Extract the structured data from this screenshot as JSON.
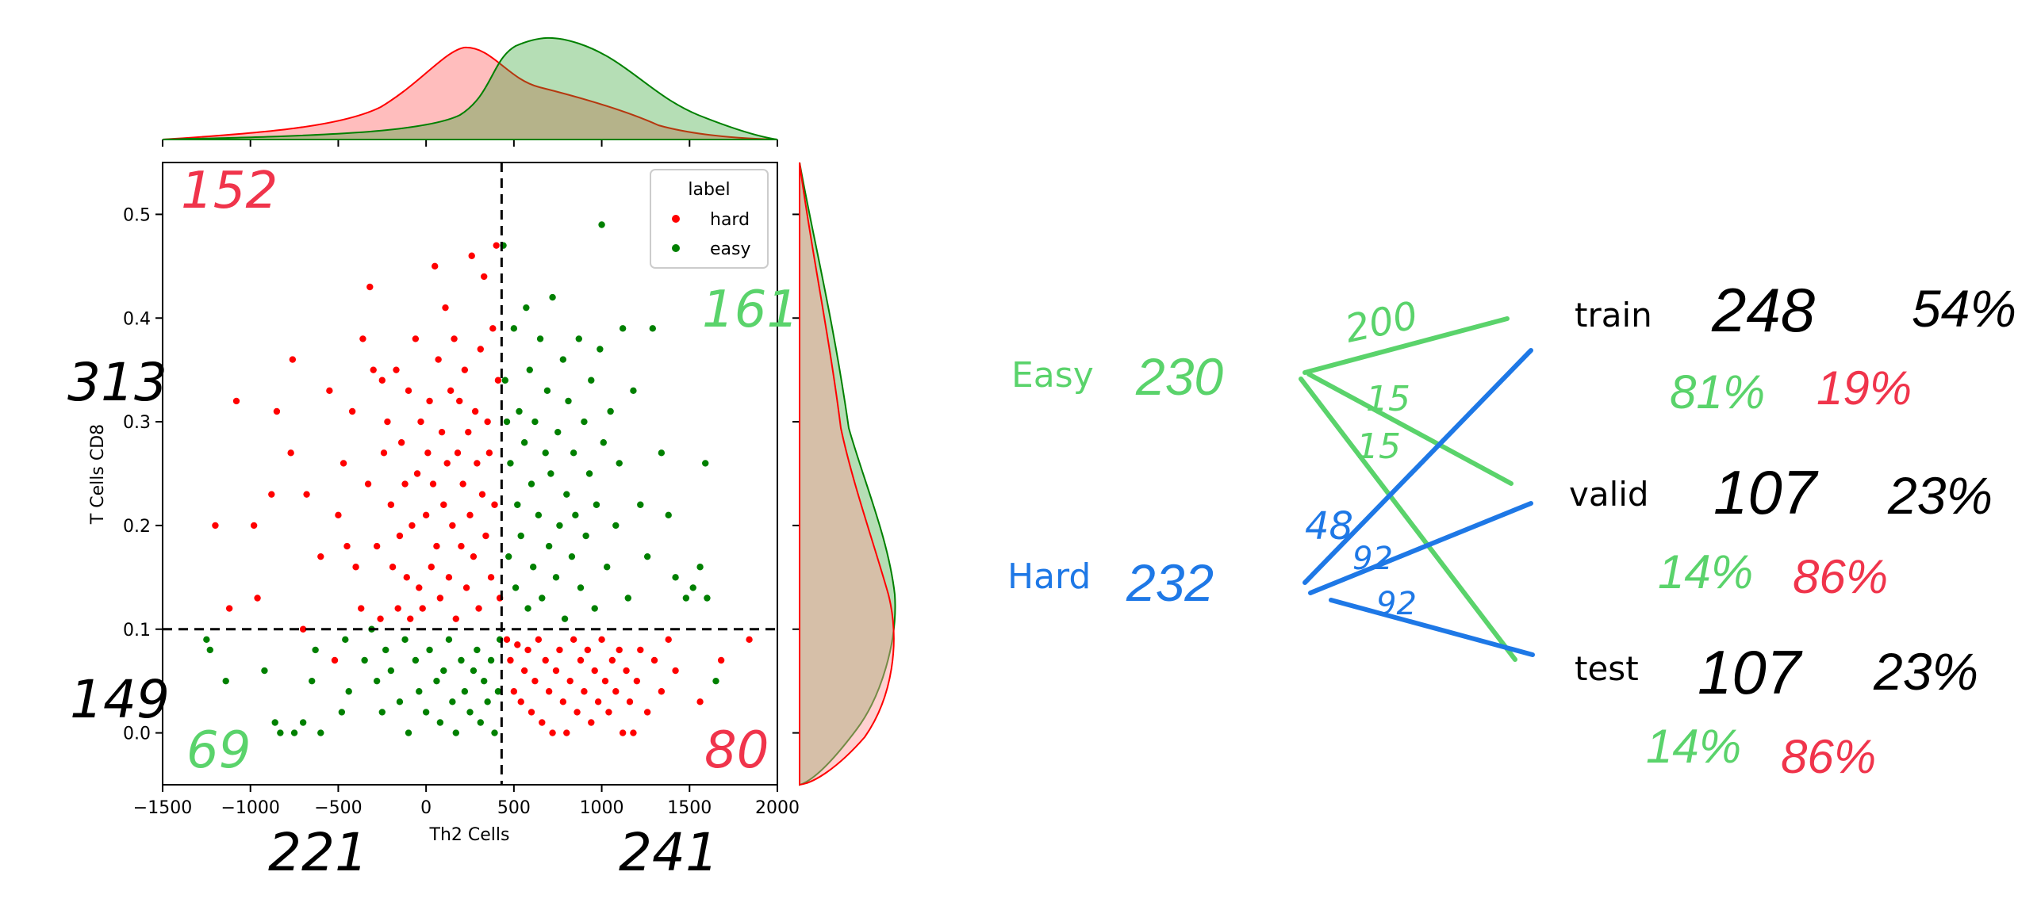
{
  "chart_data": {
    "type": "scatter",
    "xlabel": "Th2 Cells",
    "ylabel": "T Cells CD8",
    "xlim": [
      -1500,
      2000
    ],
    "ylim": [
      -0.05,
      0.55
    ],
    "x_ticks": [
      -1500,
      -1000,
      -500,
      0,
      500,
      1000,
      1500,
      2000
    ],
    "x_tick_labels": [
      "−1500",
      "−1000",
      "−500",
      "0",
      "500",
      "1000",
      "1500",
      "2000"
    ],
    "y_ticks": [
      0.0,
      0.1,
      0.2,
      0.3,
      0.4,
      0.5
    ],
    "y_tick_labels": [
      "0.0",
      "0.1",
      "0.2",
      "0.3",
      "0.4",
      "0.5"
    ],
    "legend": {
      "title": "label",
      "position": "top-right",
      "entries": [
        "hard",
        "easy"
      ]
    },
    "thresholds": {
      "x": 430,
      "y": 0.1
    },
    "series": [
      {
        "name": "hard",
        "color": "#ff0000",
        "points": [
          [
            -1200,
            0.2
          ],
          [
            -1120,
            0.12
          ],
          [
            -1080,
            0.32
          ],
          [
            -980,
            0.2
          ],
          [
            -960,
            0.13
          ],
          [
            -880,
            0.23
          ],
          [
            -850,
            0.31
          ],
          [
            -770,
            0.27
          ],
          [
            -760,
            0.36
          ],
          [
            -700,
            0.1
          ],
          [
            -680,
            0.23
          ],
          [
            -600,
            0.17
          ],
          [
            -550,
            0.33
          ],
          [
            -520,
            0.07
          ],
          [
            -500,
            0.21
          ],
          [
            -470,
            0.26
          ],
          [
            -450,
            0.18
          ],
          [
            -420,
            0.31
          ],
          [
            -400,
            0.16
          ],
          [
            -370,
            0.12
          ],
          [
            -360,
            0.38
          ],
          [
            -330,
            0.24
          ],
          [
            -320,
            0.43
          ],
          [
            -300,
            0.35
          ],
          [
            -280,
            0.18
          ],
          [
            -260,
            0.11
          ],
          [
            -250,
            0.34
          ],
          [
            -240,
            0.27
          ],
          [
            -220,
            0.3
          ],
          [
            -200,
            0.22
          ],
          [
            -190,
            0.16
          ],
          [
            -170,
            0.35
          ],
          [
            -160,
            0.12
          ],
          [
            -150,
            0.19
          ],
          [
            -140,
            0.28
          ],
          [
            -120,
            0.24
          ],
          [
            -110,
            0.15
          ],
          [
            -100,
            0.33
          ],
          [
            -90,
            0.11
          ],
          [
            -80,
            0.2
          ],
          [
            -60,
            0.38
          ],
          [
            -50,
            0.25
          ],
          [
            -40,
            0.14
          ],
          [
            -30,
            0.3
          ],
          [
            -20,
            0.12
          ],
          [
            0,
            0.21
          ],
          [
            10,
            0.27
          ],
          [
            20,
            0.32
          ],
          [
            30,
            0.16
          ],
          [
            40,
            0.24
          ],
          [
            50,
            0.45
          ],
          [
            60,
            0.18
          ],
          [
            70,
            0.36
          ],
          [
            80,
            0.13
          ],
          [
            90,
            0.29
          ],
          [
            100,
            0.22
          ],
          [
            110,
            0.41
          ],
          [
            120,
            0.26
          ],
          [
            130,
            0.15
          ],
          [
            140,
            0.33
          ],
          [
            150,
            0.2
          ],
          [
            160,
            0.38
          ],
          [
            170,
            0.11
          ],
          [
            180,
            0.27
          ],
          [
            190,
            0.32
          ],
          [
            200,
            0.18
          ],
          [
            210,
            0.24
          ],
          [
            220,
            0.35
          ],
          [
            230,
            0.14
          ],
          [
            240,
            0.29
          ],
          [
            250,
            0.21
          ],
          [
            260,
            0.46
          ],
          [
            270,
            0.17
          ],
          [
            280,
            0.31
          ],
          [
            290,
            0.26
          ],
          [
            300,
            0.12
          ],
          [
            310,
            0.37
          ],
          [
            320,
            0.23
          ],
          [
            330,
            0.44
          ],
          [
            340,
            0.19
          ],
          [
            350,
            0.3
          ],
          [
            360,
            0.27
          ],
          [
            370,
            0.15
          ],
          [
            380,
            0.39
          ],
          [
            390,
            0.22
          ],
          [
            400,
            0.47
          ],
          [
            410,
            0.34
          ],
          [
            420,
            0.13
          ],
          [
            460,
            0.09
          ],
          [
            480,
            0.07
          ],
          [
            500,
            0.04
          ],
          [
            520,
            0.085
          ],
          [
            540,
            0.03
          ],
          [
            560,
            0.06
          ],
          [
            580,
            0.08
          ],
          [
            600,
            0.02
          ],
          [
            620,
            0.05
          ],
          [
            640,
            0.09
          ],
          [
            660,
            0.01
          ],
          [
            680,
            0.07
          ],
          [
            700,
            0.04
          ],
          [
            720,
            0.0
          ],
          [
            740,
            0.06
          ],
          [
            760,
            0.08
          ],
          [
            780,
            0.03
          ],
          [
            800,
            0.0
          ],
          [
            820,
            0.05
          ],
          [
            840,
            0.09
          ],
          [
            860,
            0.02
          ],
          [
            880,
            0.07
          ],
          [
            900,
            0.04
          ],
          [
            920,
            0.08
          ],
          [
            940,
            0.01
          ],
          [
            960,
            0.06
          ],
          [
            980,
            0.03
          ],
          [
            1000,
            0.09
          ],
          [
            1020,
            0.05
          ],
          [
            1040,
            0.02
          ],
          [
            1060,
            0.07
          ],
          [
            1080,
            0.04
          ],
          [
            1100,
            0.08
          ],
          [
            1120,
            0.0
          ],
          [
            1140,
            0.06
          ],
          [
            1160,
            0.03
          ],
          [
            1180,
            0.0
          ],
          [
            1200,
            0.05
          ],
          [
            1220,
            0.08
          ],
          [
            1260,
            0.02
          ],
          [
            1300,
            0.07
          ],
          [
            1340,
            0.04
          ],
          [
            1380,
            0.09
          ],
          [
            1420,
            0.06
          ],
          [
            1560,
            0.03
          ],
          [
            1680,
            0.07
          ],
          [
            1840,
            0.09
          ]
        ]
      },
      {
        "name": "easy",
        "color": "#008000",
        "points": [
          [
            -1250,
            0.09
          ],
          [
            -1230,
            0.08
          ],
          [
            -1140,
            0.05
          ],
          [
            -920,
            0.06
          ],
          [
            -860,
            0.01
          ],
          [
            -830,
            0.0
          ],
          [
            -750,
            0.0
          ],
          [
            -700,
            0.01
          ],
          [
            -650,
            0.05
          ],
          [
            -630,
            0.08
          ],
          [
            -600,
            0.0
          ],
          [
            -480,
            0.02
          ],
          [
            -460,
            0.09
          ],
          [
            -440,
            0.04
          ],
          [
            -350,
            0.07
          ],
          [
            -310,
            0.1
          ],
          [
            -280,
            0.05
          ],
          [
            -250,
            0.02
          ],
          [
            -230,
            0.08
          ],
          [
            -200,
            0.06
          ],
          [
            -150,
            0.03
          ],
          [
            -120,
            0.09
          ],
          [
            -100,
            0.0
          ],
          [
            -60,
            0.07
          ],
          [
            -40,
            0.04
          ],
          [
            0,
            0.02
          ],
          [
            20,
            0.08
          ],
          [
            60,
            0.05
          ],
          [
            80,
            0.01
          ],
          [
            100,
            0.06
          ],
          [
            130,
            0.09
          ],
          [
            150,
            0.03
          ],
          [
            170,
            0.0
          ],
          [
            200,
            0.07
          ],
          [
            220,
            0.04
          ],
          [
            250,
            0.02
          ],
          [
            270,
            0.06
          ],
          [
            290,
            0.08
          ],
          [
            310,
            0.01
          ],
          [
            330,
            0.05
          ],
          [
            350,
            0.03
          ],
          [
            370,
            0.07
          ],
          [
            390,
            0.0
          ],
          [
            410,
            0.04
          ],
          [
            420,
            0.09
          ],
          [
            440,
            0.47
          ],
          [
            450,
            0.34
          ],
          [
            460,
            0.3
          ],
          [
            470,
            0.17
          ],
          [
            480,
            0.26
          ],
          [
            500,
            0.39
          ],
          [
            510,
            0.14
          ],
          [
            520,
            0.22
          ],
          [
            530,
            0.31
          ],
          [
            540,
            0.19
          ],
          [
            560,
            0.28
          ],
          [
            570,
            0.41
          ],
          [
            580,
            0.12
          ],
          [
            590,
            0.35
          ],
          [
            600,
            0.24
          ],
          [
            610,
            0.16
          ],
          [
            620,
            0.3
          ],
          [
            640,
            0.21
          ],
          [
            650,
            0.38
          ],
          [
            660,
            0.13
          ],
          [
            680,
            0.27
          ],
          [
            690,
            0.33
          ],
          [
            700,
            0.18
          ],
          [
            710,
            0.25
          ],
          [
            720,
            0.42
          ],
          [
            740,
            0.15
          ],
          [
            750,
            0.29
          ],
          [
            760,
            0.2
          ],
          [
            780,
            0.36
          ],
          [
            790,
            0.11
          ],
          [
            800,
            0.23
          ],
          [
            810,
            0.32
          ],
          [
            830,
            0.17
          ],
          [
            840,
            0.27
          ],
          [
            850,
            0.21
          ],
          [
            870,
            0.38
          ],
          [
            880,
            0.14
          ],
          [
            900,
            0.3
          ],
          [
            910,
            0.19
          ],
          [
            930,
            0.25
          ],
          [
            940,
            0.34
          ],
          [
            960,
            0.12
          ],
          [
            970,
            0.22
          ],
          [
            990,
            0.37
          ],
          [
            1000,
            0.49
          ],
          [
            1010,
            0.28
          ],
          [
            1030,
            0.16
          ],
          [
            1050,
            0.31
          ],
          [
            1080,
            0.2
          ],
          [
            1100,
            0.26
          ],
          [
            1120,
            0.39
          ],
          [
            1150,
            0.13
          ],
          [
            1180,
            0.33
          ],
          [
            1220,
            0.22
          ],
          [
            1260,
            0.17
          ],
          [
            1290,
            0.39
          ],
          [
            1340,
            0.27
          ],
          [
            1380,
            0.21
          ],
          [
            1420,
            0.15
          ],
          [
            1480,
            0.13
          ],
          [
            1520,
            0.14
          ],
          [
            1560,
            0.16
          ],
          [
            1590,
            0.26
          ],
          [
            1600,
            0.13
          ],
          [
            1650,
            0.05
          ]
        ]
      }
    ]
  },
  "annotations": {
    "q_top_left": "152",
    "q_top_right": "161",
    "q_bottom_left": "69",
    "q_bottom_right": "80",
    "row_upper": "313",
    "row_lower": "149",
    "col_left": "221",
    "col_right": "241"
  },
  "split_diagram": {
    "sources": [
      {
        "label": "Easy",
        "count": "230",
        "color": "#5ad36b"
      },
      {
        "label": "Hard",
        "count": "232",
        "color": "#1e78e6"
      }
    ],
    "edge_labels": {
      "easy_train": "200",
      "easy_valid": "15",
      "easy_test": "15",
      "hard_train": "48",
      "hard_valid": "92",
      "hard_test": "92"
    },
    "targets": [
      {
        "label": "train",
        "count": "248",
        "percent": "54%",
        "easy_pct": "81%",
        "hard_pct": "19%"
      },
      {
        "label": "valid",
        "count": "107",
        "percent": "23%",
        "easy_pct": "14%",
        "hard_pct": "86%"
      },
      {
        "label": "test",
        "count": "107",
        "percent": "23%",
        "easy_pct": "14%",
        "hard_pct": "86%"
      }
    ],
    "colors": {
      "easy": "#5ad36b",
      "hard": "#1e78e6",
      "ink": "#000000",
      "red": "#f0344b"
    }
  }
}
